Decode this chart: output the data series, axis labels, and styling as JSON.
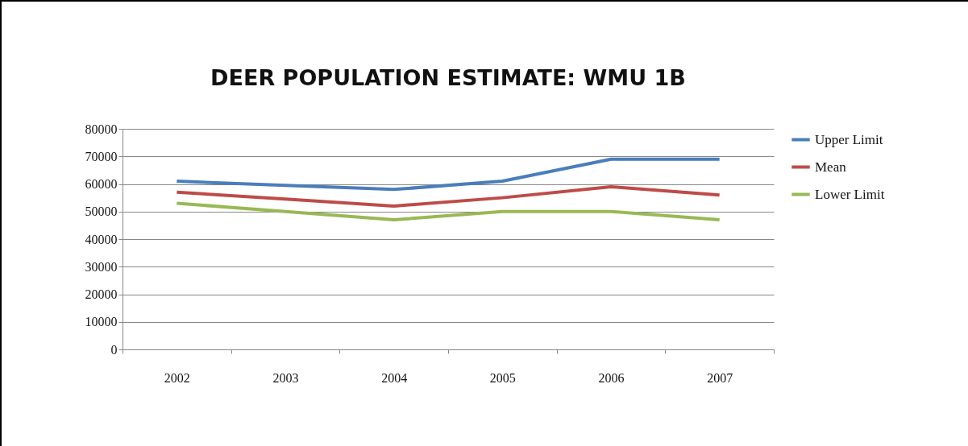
{
  "chart_data": {
    "type": "line",
    "title": "DEER POPULATION ESTIMATE:  WMU 1B",
    "categories": [
      "2002",
      "2003",
      "2004",
      "2005",
      "2006",
      "2007"
    ],
    "series": [
      {
        "name": "Upper Limit",
        "color": "#4a7ebb",
        "values": [
          61000,
          59500,
          58000,
          61000,
          69000,
          69000
        ]
      },
      {
        "name": "Mean",
        "color": "#be4b48",
        "values": [
          57000,
          54500,
          52000,
          55000,
          59000,
          56000
        ]
      },
      {
        "name": "Lower Limit",
        "color": "#98b954",
        "values": [
          53000,
          50000,
          47000,
          50000,
          50000,
          47000
        ]
      }
    ],
    "ylim": [
      0,
      80000
    ],
    "yticks": [
      0,
      10000,
      20000,
      30000,
      40000,
      50000,
      60000,
      70000,
      80000
    ],
    "grid": "y",
    "legend": "right",
    "marker": "none",
    "line_style": "solid"
  }
}
